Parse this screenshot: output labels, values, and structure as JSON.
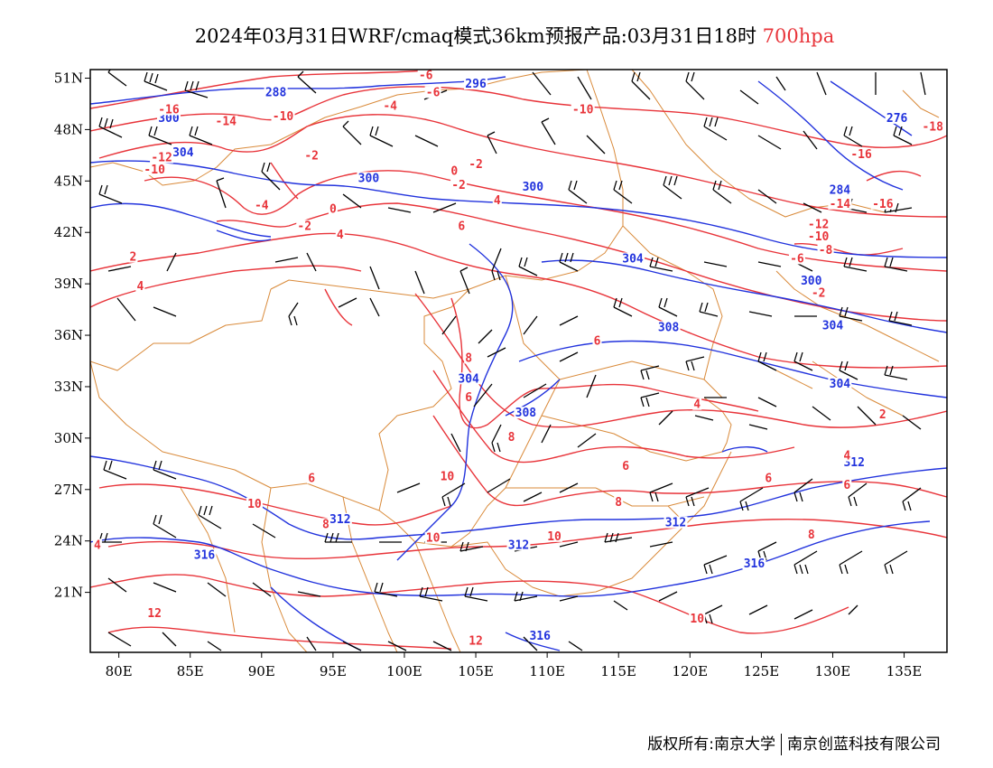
{
  "title": {
    "main": "2024年03月31日WRF/cmaq模式36km预报产品:03月31日18时",
    "level": "700hpa"
  },
  "footer": {
    "copyright": "版权所有:南京大学",
    "company": "南京创蓝科技有限公司"
  },
  "map": {
    "lon_range": [
      78,
      138
    ],
    "lat_range": [
      17.5,
      51.5
    ],
    "lat_ticks": [
      "51N",
      "48N",
      "45N",
      "42N",
      "39N",
      "36N",
      "33N",
      "30N",
      "27N",
      "24N",
      "21N"
    ],
    "lon_ticks": [
      "80E",
      "85E",
      "90E",
      "95E",
      "100E",
      "105E",
      "110E",
      "115E",
      "120E",
      "125E",
      "130E",
      "135E"
    ],
    "colors": {
      "height_contour": "#2233dd",
      "temperature_contour": "#e8343a",
      "boundary": "#d98a3a",
      "wind_barb": "#000000"
    },
    "height_contours": [
      {
        "label": "288",
        "lon": 91,
        "lat": 50
      },
      {
        "label": "296",
        "lon": 105,
        "lat": 50.5
      },
      {
        "label": "300",
        "lon": 83.5,
        "lat": 48.5
      },
      {
        "label": "304",
        "lon": 84.5,
        "lat": 46.5
      },
      {
        "label": "300",
        "lon": 97.5,
        "lat": 45
      },
      {
        "label": "300",
        "lon": 109,
        "lat": 44.5
      },
      {
        "label": "276",
        "lon": 134.5,
        "lat": 48.5
      },
      {
        "label": "284",
        "lon": 130.5,
        "lat": 44.3
      },
      {
        "label": "304",
        "lon": 116,
        "lat": 40.3
      },
      {
        "label": "300",
        "lon": 128.5,
        "lat": 39
      },
      {
        "label": "308",
        "lon": 118.5,
        "lat": 36.3
      },
      {
        "label": "304",
        "lon": 130,
        "lat": 36.4
      },
      {
        "label": "304",
        "lon": 104.5,
        "lat": 33.3
      },
      {
        "label": "308",
        "lon": 108.5,
        "lat": 31.3
      },
      {
        "label": "304",
        "lon": 130.5,
        "lat": 33
      },
      {
        "label": "312",
        "lon": 131.5,
        "lat": 28.4
      },
      {
        "label": "312",
        "lon": 95.5,
        "lat": 25.1
      },
      {
        "label": "312",
        "lon": 108,
        "lat": 23.6
      },
      {
        "label": "312",
        "lon": 119,
        "lat": 24.9
      },
      {
        "label": "316",
        "lon": 86,
        "lat": 23
      },
      {
        "label": "316",
        "lon": 124.5,
        "lat": 22.5
      },
      {
        "label": "316",
        "lon": 109.5,
        "lat": 18.3
      }
    ],
    "temperature_contours": [
      {
        "label": "-6",
        "lon": 101.5,
        "lat": 51
      },
      {
        "label": "-6",
        "lon": 102,
        "lat": 50
      },
      {
        "label": "-4",
        "lon": 99,
        "lat": 49.2
      },
      {
        "label": "-16",
        "lon": 83.5,
        "lat": 49
      },
      {
        "label": "-14",
        "lon": 87.5,
        "lat": 48.3
      },
      {
        "label": "-10",
        "lon": 91.5,
        "lat": 48.6
      },
      {
        "label": "-10",
        "lon": 112.5,
        "lat": 49
      },
      {
        "label": "-2",
        "lon": 93.5,
        "lat": 46.3
      },
      {
        "label": "-2",
        "lon": 105,
        "lat": 45.8
      },
      {
        "label": "-12",
        "lon": 83,
        "lat": 46.2
      },
      {
        "label": "-10",
        "lon": 82.5,
        "lat": 45.5
      },
      {
        "label": "0",
        "lon": 103.5,
        "lat": 45.4
      },
      {
        "label": "-2",
        "lon": 103.8,
        "lat": 44.6
      },
      {
        "label": "-4",
        "lon": 90,
        "lat": 43.4
      },
      {
        "label": "0",
        "lon": 95,
        "lat": 43.2
      },
      {
        "label": "4",
        "lon": 106.5,
        "lat": 43.7
      },
      {
        "label": "-2",
        "lon": 93,
        "lat": 42.2
      },
      {
        "label": "4",
        "lon": 95.5,
        "lat": 41.7
      },
      {
        "label": "6",
        "lon": 104,
        "lat": 42.2
      },
      {
        "label": "-18",
        "lon": 137,
        "lat": 48
      },
      {
        "label": "-16",
        "lon": 132,
        "lat": 46.4
      },
      {
        "label": "-14",
        "lon": 130.5,
        "lat": 43.5
      },
      {
        "label": "-16",
        "lon": 133.5,
        "lat": 43.5
      },
      {
        "label": "-12",
        "lon": 129,
        "lat": 42.3
      },
      {
        "label": "-10",
        "lon": 129,
        "lat": 41.6
      },
      {
        "label": "-8",
        "lon": 129.5,
        "lat": 40.8
      },
      {
        "label": "-6",
        "lon": 127.5,
        "lat": 40.3
      },
      {
        "label": "-2",
        "lon": 129,
        "lat": 38.3
      },
      {
        "label": "2",
        "lon": 81,
        "lat": 40.4
      },
      {
        "label": "4",
        "lon": 81.5,
        "lat": 38.7
      },
      {
        "label": "6",
        "lon": 113.5,
        "lat": 35.5
      },
      {
        "label": "8",
        "lon": 104.5,
        "lat": 34.5
      },
      {
        "label": "6",
        "lon": 104.5,
        "lat": 32.2
      },
      {
        "label": "4",
        "lon": 120.5,
        "lat": 31.8
      },
      {
        "label": "2",
        "lon": 133.5,
        "lat": 31.2
      },
      {
        "label": "8",
        "lon": 107.5,
        "lat": 29.9
      },
      {
        "label": "6",
        "lon": 115.5,
        "lat": 28.2
      },
      {
        "label": "6",
        "lon": 125.5,
        "lat": 27.5
      },
      {
        "label": "4",
        "lon": 131,
        "lat": 28.8
      },
      {
        "label": "6",
        "lon": 131,
        "lat": 27.1
      },
      {
        "label": "6",
        "lon": 93.5,
        "lat": 27.5
      },
      {
        "label": "10",
        "lon": 103,
        "lat": 27.6
      },
      {
        "label": "10",
        "lon": 89.5,
        "lat": 26
      },
      {
        "label": "8",
        "lon": 94.5,
        "lat": 24.8
      },
      {
        "label": "8",
        "lon": 115,
        "lat": 26.1
      },
      {
        "label": "10",
        "lon": 102,
        "lat": 24
      },
      {
        "label": "10",
        "lon": 110.5,
        "lat": 24.1
      },
      {
        "label": "8",
        "lon": 128.5,
        "lat": 24.2
      },
      {
        "label": "4",
        "lon": 78.5,
        "lat": 23.6
      },
      {
        "label": "12",
        "lon": 82.5,
        "lat": 19.6
      },
      {
        "label": "10",
        "lon": 120.5,
        "lat": 19.3
      },
      {
        "label": "12",
        "lon": 105,
        "lat": 18
      }
    ]
  }
}
